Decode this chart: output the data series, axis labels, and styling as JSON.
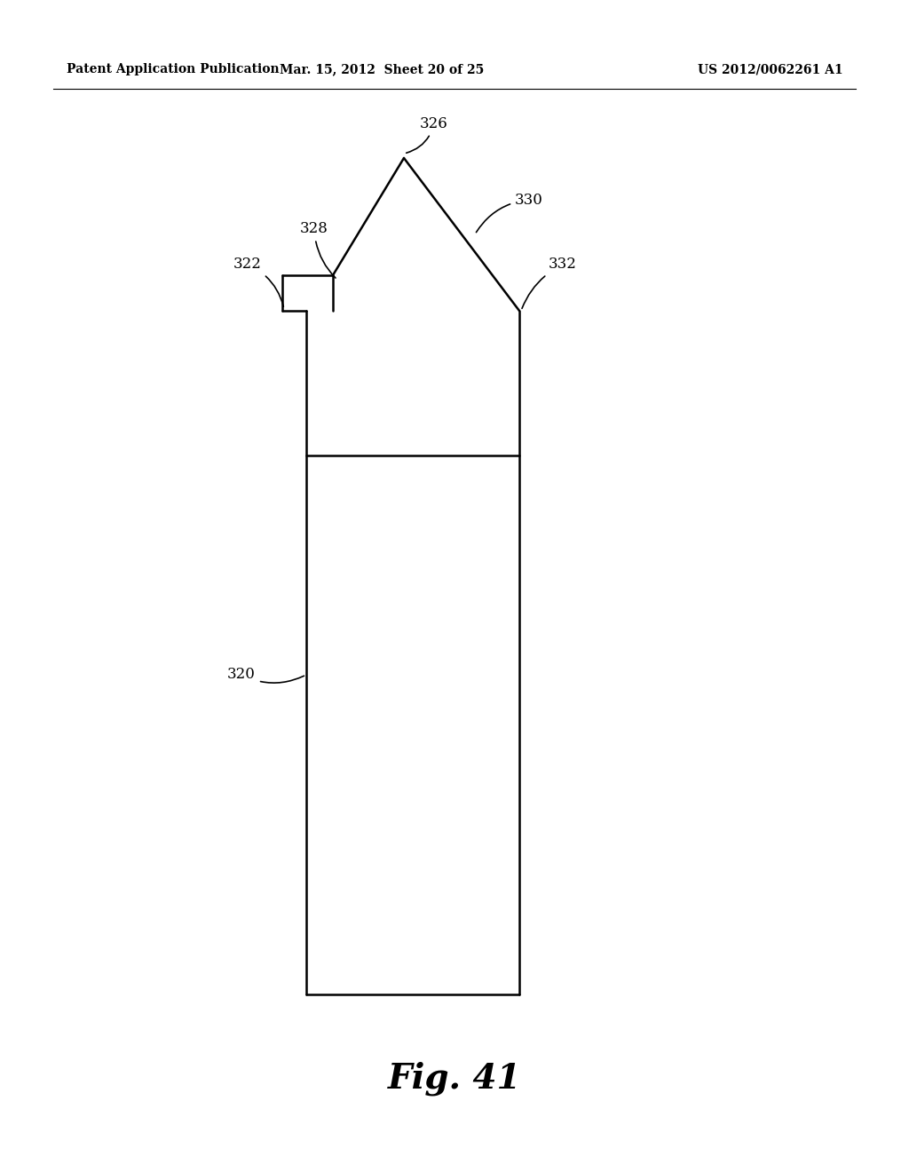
{
  "bg_color": "#ffffff",
  "line_color": "#000000",
  "header_left": "Patent Application Publication",
  "header_mid": "Mar. 15, 2012  Sheet 20 of 25",
  "header_right": "US 2012/0062261 A1",
  "figure_label": "Fig. 41",
  "lw": 1.8,
  "label_fontsize": 12,
  "header_fontsize": 10,
  "fig_label_fontsize": 28
}
